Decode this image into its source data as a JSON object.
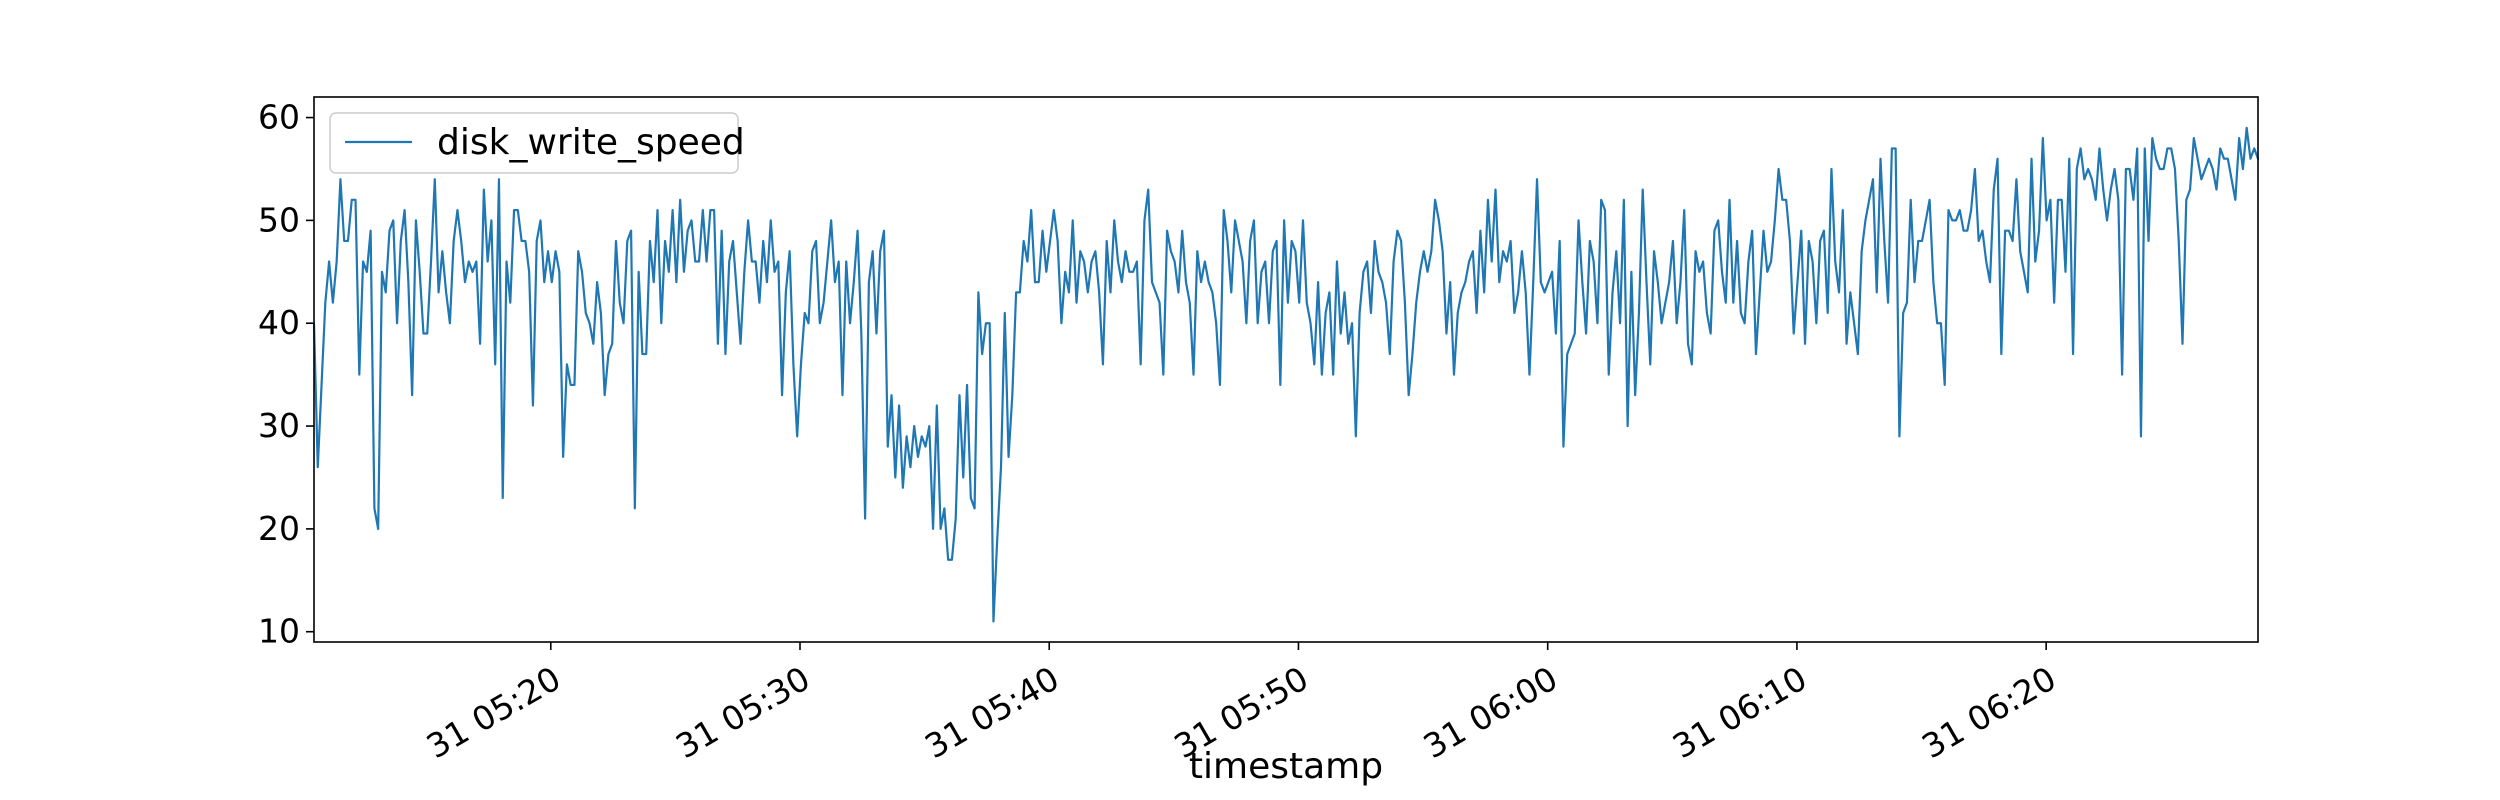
{
  "chart_data": {
    "type": "line",
    "title": "",
    "xlabel": "timestamp",
    "ylabel": "",
    "x_start": "31 05:10:30",
    "x_end": "31 06:28:30",
    "xlim": [
      "31 05:10:30",
      "31 06:28:30"
    ],
    "ylim": [
      9,
      62
    ],
    "x_ticks": [
      "31 05:20",
      "31 05:30",
      "31 05:40",
      "31 05:50",
      "31 06:00",
      "31 06:10",
      "31 06:20"
    ],
    "y_ticks": [
      10,
      20,
      30,
      40,
      50,
      60
    ],
    "grid": false,
    "legend_position": "top-left",
    "series": [
      {
        "name": "disk_write_speed",
        "color": "#1f77b4",
        "values": [
          40,
          26,
          34,
          42,
          46,
          42,
          46,
          54,
          48,
          48,
          52,
          52,
          35,
          46,
          45,
          49,
          22,
          20,
          45,
          43,
          49,
          50,
          40,
          48,
          51,
          44,
          33,
          50,
          45,
          39,
          39,
          46,
          54,
          43,
          47,
          43,
          40,
          48,
          51,
          48,
          44,
          46,
          45,
          46,
          38,
          53,
          46,
          50,
          36,
          54,
          23,
          46,
          42,
          51,
          51,
          48,
          48,
          45,
          32,
          48,
          50,
          44,
          47,
          44,
          47,
          45,
          27,
          36,
          34,
          34,
          47,
          45,
          41,
          40,
          38,
          44,
          41,
          33,
          37,
          38,
          48,
          42,
          40,
          48,
          49,
          22,
          45,
          37,
          37,
          48,
          44,
          51,
          40,
          48,
          45,
          51,
          44,
          52,
          45,
          49,
          50,
          46,
          46,
          51,
          46,
          51,
          51,
          38,
          49,
          37,
          46,
          48,
          43,
          38,
          45,
          50,
          46,
          46,
          42,
          48,
          44,
          50,
          45,
          46,
          33,
          43,
          47,
          36,
          29,
          36,
          41,
          40,
          47,
          48,
          40,
          42,
          46,
          50,
          44,
          46,
          33,
          46,
          40,
          44,
          49,
          39,
          21,
          44,
          47,
          39,
          47,
          49,
          28,
          33,
          25,
          32,
          24,
          29,
          26,
          30,
          27,
          29,
          28,
          30,
          20,
          32,
          20,
          22,
          17,
          17,
          21,
          33,
          25,
          34,
          23,
          22,
          43,
          37,
          40,
          40,
          11,
          19,
          26,
          41,
          27,
          33,
          43,
          43,
          48,
          46,
          51,
          44,
          44,
          49,
          45,
          48,
          51,
          48,
          40,
          45,
          43,
          50,
          42,
          47,
          46,
          43,
          46,
          47,
          43,
          36,
          48,
          43,
          50,
          46,
          44,
          47,
          45,
          45,
          46,
          36,
          50,
          53,
          44,
          43,
          42,
          35,
          49,
          47,
          46,
          43,
          49,
          44,
          42,
          35,
          47,
          44,
          46,
          44,
          43,
          40,
          34,
          51,
          48,
          43,
          50,
          48,
          46,
          40,
          48,
          50,
          40,
          45,
          46,
          40,
          47,
          48,
          34,
          50,
          42,
          48,
          47,
          42,
          50,
          42,
          40,
          36,
          44,
          35,
          41,
          43,
          35,
          46,
          39,
          43,
          38,
          40,
          29,
          41,
          45,
          46,
          41,
          48,
          45,
          44,
          42,
          37,
          46,
          49,
          48,
          42,
          33,
          37,
          42,
          45,
          47,
          45,
          47,
          52,
          50,
          47,
          39,
          44,
          35,
          41,
          43,
          44,
          46,
          47,
          41,
          49,
          43,
          52,
          46,
          53,
          44,
          47,
          46,
          48,
          41,
          43,
          47,
          43,
          35,
          44,
          54,
          44,
          43,
          44,
          45,
          39,
          48,
          28,
          37,
          38,
          39,
          50,
          44,
          39,
          48,
          46,
          40,
          52,
          51,
          35,
          43,
          47,
          40,
          52,
          30,
          45,
          33,
          41,
          53,
          44,
          36,
          47,
          44,
          40,
          42,
          44,
          48,
          40,
          44,
          51,
          38,
          36,
          47,
          45,
          46,
          41,
          39,
          49,
          50,
          45,
          42,
          52,
          42,
          48,
          41,
          40,
          46,
          49,
          37,
          43,
          49,
          45,
          46,
          50,
          55,
          52,
          52,
          48,
          39,
          44,
          49,
          38,
          48,
          46,
          40,
          48,
          49,
          41,
          55,
          46,
          43,
          51,
          38,
          43,
          40,
          37,
          47,
          50,
          52,
          54,
          43,
          56,
          48,
          42,
          57,
          57,
          29,
          41,
          42,
          52,
          44,
          48,
          48,
          50,
          52,
          44,
          40,
          40,
          34,
          51,
          50,
          50,
          51,
          49,
          49,
          51,
          55,
          48,
          49,
          46,
          44,
          53,
          56,
          37,
          49,
          49,
          48,
          54,
          47,
          45,
          43,
          56,
          46,
          49,
          58,
          50,
          52,
          42,
          52,
          52,
          45,
          56,
          37,
          55,
          57,
          54,
          55,
          54,
          52,
          57,
          53,
          50,
          53,
          55,
          52,
          35,
          55,
          55,
          52,
          57,
          29,
          57,
          48,
          58,
          56,
          55,
          55,
          57,
          57,
          55,
          48,
          38,
          52,
          53,
          58,
          56,
          54,
          55,
          56,
          55,
          53,
          57,
          56,
          56,
          54,
          52,
          58,
          55,
          59,
          56,
          57,
          56
        ]
      }
    ]
  }
}
